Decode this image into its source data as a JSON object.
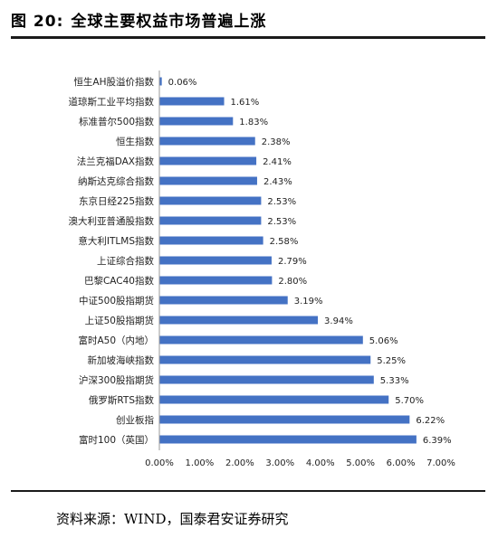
{
  "figure": {
    "number": "图 20:",
    "title": "全球主要权益市场普遍上涨",
    "source": "资料来源：WIND，国泰君安证券研究"
  },
  "chart_data": {
    "type": "bar",
    "orientation": "horizontal",
    "categories": [
      "恒生AH股溢价指数",
      "道琼斯工业平均指数",
      "标准普尔500指数",
      "恒生指数",
      "法兰克福DAX指数",
      "纳斯达克综合指数",
      "东京日经225指数",
      "澳大利亚普通股指数",
      "意大利ITLMS指数",
      "上证综合指数",
      "巴黎CAC40指数",
      "中证500股指期货",
      "上证50股指期货",
      "富时A50（内地）",
      "新加坡海峡指数",
      "沪深300股指期货",
      "俄罗斯RTS指数",
      "创业板指",
      "富时100（英国）"
    ],
    "values": [
      0.06,
      1.61,
      1.83,
      2.38,
      2.41,
      2.43,
      2.53,
      2.53,
      2.58,
      2.79,
      2.8,
      3.19,
      3.94,
      5.06,
      5.25,
      5.33,
      5.7,
      6.22,
      6.39
    ],
    "value_labels": [
      "0.06%",
      "1.61%",
      "1.83%",
      "2.38%",
      "2.41%",
      "2.43%",
      "2.53%",
      "2.53%",
      "2.58%",
      "2.79%",
      "2.80%",
      "3.19%",
      "3.94%",
      "5.06%",
      "5.25%",
      "5.33%",
      "5.70%",
      "6.22%",
      "6.39%"
    ],
    "xlim": [
      0,
      7
    ],
    "x_ticks": [
      "0.00%",
      "1.00%",
      "2.00%",
      "3.00%",
      "4.00%",
      "5.00%",
      "6.00%",
      "7.00%"
    ],
    "grid": false,
    "legend": "none",
    "bar_color": "#4472C4"
  }
}
